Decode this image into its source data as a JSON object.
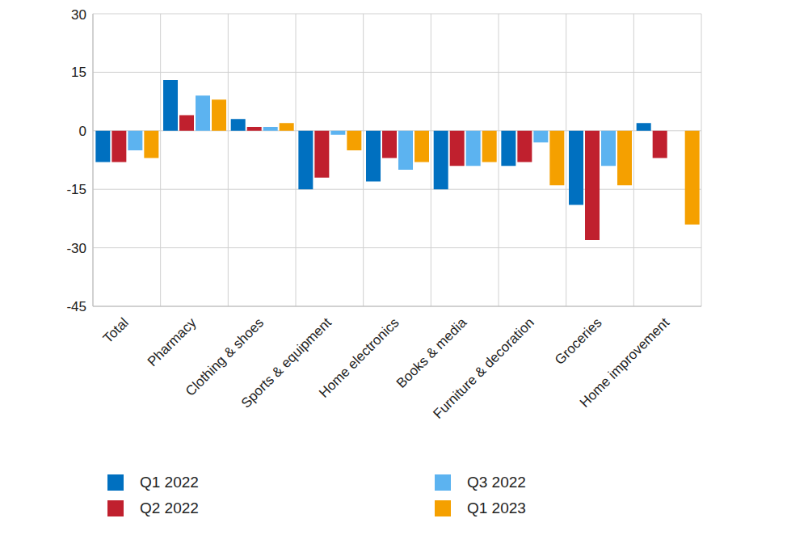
{
  "chart_data": {
    "type": "bar",
    "categories": [
      "Total",
      "Pharmacy",
      "Clothing & shoes",
      "Sports & equipment",
      "Home electronics",
      "Books & media",
      "Furniture & decoration",
      "Groceries",
      "Home improvement"
    ],
    "series": [
      {
        "name": "Q1 2022",
        "color": "#0070c0",
        "values": [
          -8,
          13,
          3,
          -15,
          -13,
          -15,
          -9,
          -19,
          2
        ]
      },
      {
        "name": "Q2 2022",
        "color": "#c0202e",
        "values": [
          -8,
          4,
          1,
          -12,
          -7,
          -9,
          -8,
          -28,
          -7
        ]
      },
      {
        "name": "Q3 2022",
        "color": "#5cb3f0",
        "values": [
          -5,
          9,
          1,
          -1,
          -10,
          -9,
          -3,
          -9,
          null
        ]
      },
      {
        "name": "Q1 2023",
        "color": "#f5a000",
        "values": [
          -7,
          8,
          2,
          -5,
          -8,
          -8,
          -14,
          -14,
          -24
        ]
      }
    ],
    "ylim": [
      -45,
      30
    ],
    "yticks": [
      -45,
      -30,
      -15,
      0,
      15,
      30
    ],
    "grid": true,
    "legend": "bottom"
  }
}
